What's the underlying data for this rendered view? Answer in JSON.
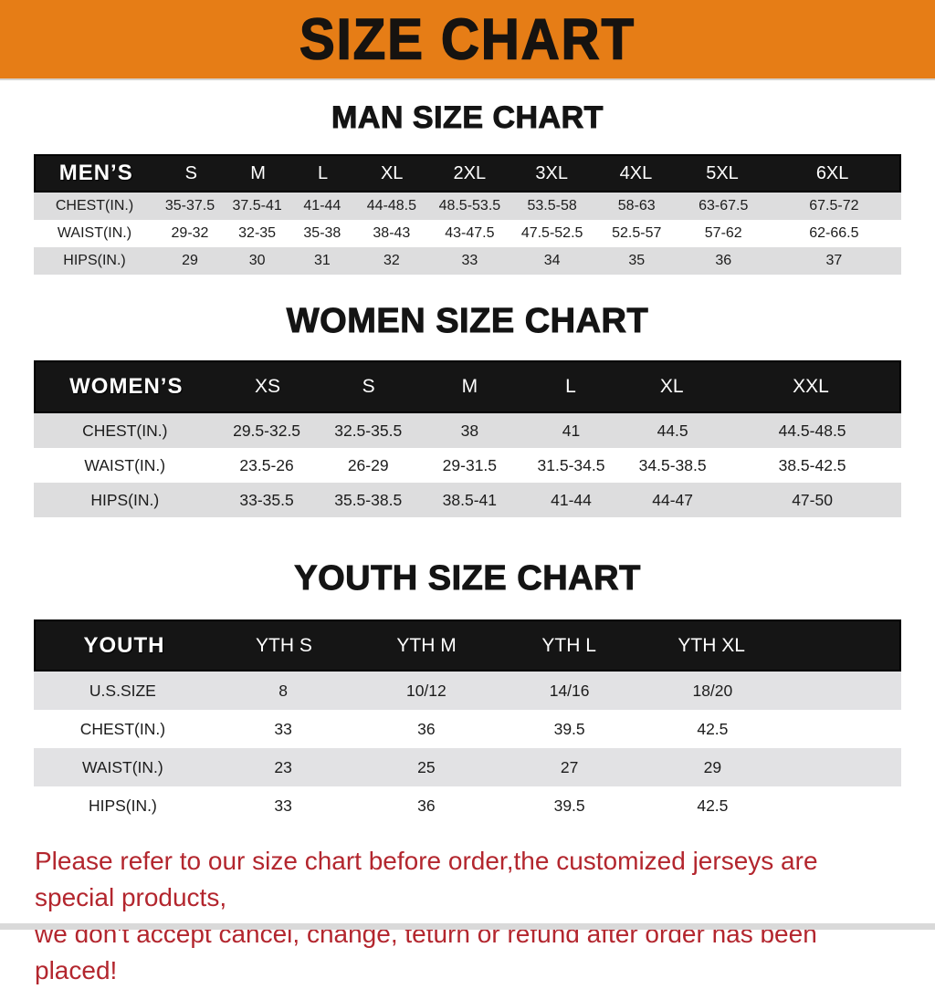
{
  "banner": {
    "title": "SIZE CHART",
    "bg_color": "#E67D16"
  },
  "sections": [
    {
      "heading": "MAN SIZE CHART",
      "table": {
        "label": "MEN’S",
        "columns": [
          "S",
          "M",
          "L",
          "XL",
          "2XL",
          "3XL",
          "4XL",
          "5XL",
          "6XL"
        ],
        "rows": [
          {
            "label": "CHEST(IN.)",
            "values": [
              "35-37.5",
              "37.5-41",
              "41-44",
              "44-48.5",
              "48.5-53.5",
              "53.5-58",
              "58-63",
              "63-67.5",
              "67.5-72"
            ]
          },
          {
            "label": "WAIST(IN.)",
            "values": [
              "29-32",
              "32-35",
              "35-38",
              "38-43",
              "43-47.5",
              "47.5-52.5",
              "52.5-57",
              "57-62",
              "62-66.5"
            ]
          },
          {
            "label": "HIPS(IN.)",
            "values": [
              "29",
              "30",
              "31",
              "32",
              "33",
              "34",
              "35",
              "36",
              "37"
            ]
          }
        ]
      }
    },
    {
      "heading": "WOMEN SIZE CHART",
      "table": {
        "label": "WOMEN’S",
        "columns": [
          "XS",
          "S",
          "M",
          "L",
          "XL",
          "XXL"
        ],
        "rows": [
          {
            "label": "CHEST(IN.)",
            "values": [
              "29.5-32.5",
              "32.5-35.5",
              "38",
              "41",
              "44.5",
              "44.5-48.5"
            ]
          },
          {
            "label": "WAIST(IN.)",
            "values": [
              "23.5-26",
              "26-29",
              "29-31.5",
              "31.5-34.5",
              "34.5-38.5",
              "38.5-42.5"
            ]
          },
          {
            "label": "HIPS(IN.)",
            "values": [
              "33-35.5",
              "35.5-38.5",
              "38.5-41",
              "41-44",
              "44-47",
              "47-50"
            ]
          }
        ]
      }
    },
    {
      "heading": "YOUTH SIZE CHART",
      "table": {
        "label": "YOUTH",
        "columns": [
          "YTH S",
          "YTH M",
          "YTH L",
          "YTH XL"
        ],
        "rows": [
          {
            "label": "U.S.SIZE",
            "values": [
              "8",
              "10/12",
              "14/16",
              "18/20"
            ]
          },
          {
            "label": "CHEST(IN.)",
            "values": [
              "33",
              "36",
              "39.5",
              "42.5"
            ]
          },
          {
            "label": "WAIST(IN.)",
            "values": [
              "23",
              "25",
              "27",
              "29"
            ]
          },
          {
            "label": "HIPS(IN.)",
            "values": [
              "33",
              "36",
              "39.5",
              "42.5"
            ]
          }
        ]
      }
    }
  ],
  "footer": {
    "line1": "Please refer to our size chart before order,the customized jerseys are special products,",
    "line2": "we don't accept cancel, change, teturn or refund after order has been placed!",
    "text_color": "#B3262E"
  }
}
